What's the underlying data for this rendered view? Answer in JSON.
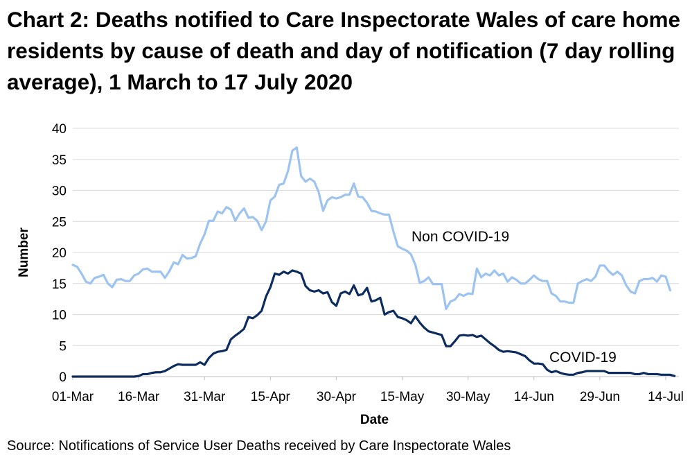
{
  "title": "Chart 2: Deaths notified to Care Inspectorate Wales of care home residents by cause of death and day of notification (7 day rolling average), 1 March to 17 July 2020",
  "source": "Source: Notifications of Service User Deaths received by Care Inspectorate Wales",
  "colors": {
    "non_covid": "#9DC3F0",
    "covid": "#0C2B5E",
    "grid": "#D9D9D9",
    "axis": "#BFBFBF"
  },
  "chart_data": {
    "type": "line",
    "title": "Chart 2: Deaths notified to Care Inspectorate Wales of care home residents by cause of death and day of notification (7 day rolling average), 1 March to 17 July 2020",
    "xlabel": "Date",
    "ylabel": "Number",
    "ylim": [
      0,
      40
    ],
    "yticks": [
      "0",
      "5",
      "10",
      "15",
      "20",
      "25",
      "30",
      "35",
      "40"
    ],
    "xticks": [
      "01-Mar",
      "16-Mar",
      "31-Mar",
      "15-Apr",
      "30-Apr",
      "15-May",
      "30-May",
      "14-Jun",
      "29-Jun",
      "14-Jul"
    ],
    "grid": true,
    "legend": "none",
    "x_start": "2020-03-01",
    "x_end": "2020-07-17",
    "series": [
      {
        "name": "Non COVID-19",
        "color": "#9DC3F0",
        "label": "Non COVID-19",
        "values": [
          18.0,
          17.7,
          16.6,
          15.3,
          15.0,
          15.9,
          16.1,
          16.4,
          15.0,
          14.4,
          15.6,
          15.7,
          15.4,
          15.4,
          16.3,
          16.6,
          17.3,
          17.4,
          16.9,
          16.9,
          16.9,
          15.9,
          17.0,
          18.4,
          18.1,
          19.6,
          19.0,
          19.1,
          19.4,
          21.4,
          22.9,
          25.1,
          25.1,
          26.6,
          26.3,
          27.3,
          26.9,
          25.1,
          26.3,
          27.1,
          25.6,
          25.7,
          25.1,
          23.6,
          25.0,
          28.4,
          29.0,
          30.9,
          31.1,
          33.1,
          36.4,
          36.9,
          32.3,
          31.4,
          31.9,
          31.4,
          29.7,
          26.7,
          28.4,
          28.9,
          28.7,
          28.9,
          29.3,
          29.3,
          31.1,
          29.0,
          28.9,
          28.0,
          26.7,
          26.6,
          26.3,
          26.1,
          26.1,
          23.4,
          21.0,
          20.6,
          20.3,
          19.7,
          18.0,
          15.1,
          15.4,
          16.0,
          14.9,
          14.9,
          14.9,
          10.9,
          12.1,
          12.4,
          13.3,
          13.0,
          13.4,
          13.3,
          17.4,
          16.0,
          16.6,
          16.3,
          17.1,
          16.3,
          16.6,
          15.3,
          16.0,
          15.6,
          15.0,
          15.0,
          15.6,
          16.3,
          15.7,
          15.4,
          15.4,
          13.4,
          13.0,
          12.1,
          12.1,
          11.9,
          11.9,
          15.0,
          15.4,
          15.7,
          15.4,
          16.1,
          17.9,
          17.9,
          17.0,
          16.4,
          16.9,
          16.3,
          14.7,
          13.7,
          13.4,
          15.4,
          15.7,
          15.7,
          15.9,
          15.3,
          16.3,
          16.1,
          13.9
        ]
      },
      {
        "name": "COVID-19",
        "color": "#0C2B5E",
        "label": "COVID-19",
        "values": [
          0,
          0,
          0,
          0,
          0,
          0,
          0,
          0,
          0,
          0,
          0,
          0,
          0,
          0,
          0,
          0.1,
          0.4,
          0.4,
          0.6,
          0.7,
          0.7,
          0.9,
          1.3,
          1.7,
          2.0,
          1.9,
          1.9,
          1.9,
          1.9,
          2.3,
          1.9,
          3.0,
          3.7,
          4.0,
          4.1,
          4.3,
          6.0,
          6.6,
          7.1,
          7.7,
          9.6,
          9.4,
          9.9,
          10.6,
          12.9,
          14.4,
          16.6,
          16.4,
          16.9,
          16.6,
          17.1,
          16.9,
          16.6,
          14.6,
          13.9,
          13.7,
          13.9,
          13.4,
          13.6,
          12.0,
          11.4,
          13.4,
          13.7,
          13.3,
          14.7,
          13.1,
          13.3,
          14.3,
          12.1,
          12.3,
          12.7,
          10.0,
          10.4,
          10.6,
          9.6,
          9.4,
          9.1,
          8.6,
          9.7,
          8.7,
          7.9,
          7.3,
          7.1,
          6.9,
          6.7,
          4.9,
          4.9,
          5.7,
          6.6,
          6.7,
          6.6,
          6.7,
          6.4,
          6.6,
          6.0,
          5.4,
          4.9,
          4.3,
          4.0,
          4.1,
          4.0,
          3.9,
          3.6,
          3.3,
          2.6,
          2.1,
          2.1,
          2.0,
          1.1,
          0.7,
          0.9,
          0.6,
          0.4,
          0.3,
          0.3,
          0.6,
          0.7,
          0.9,
          0.9,
          0.9,
          0.9,
          0.9,
          0.6,
          0.6,
          0.6,
          0.6,
          0.6,
          0.6,
          0.4,
          0.4,
          0.6,
          0.4,
          0.4,
          0.4,
          0.3,
          0.3,
          0.3,
          0.1
        ]
      }
    ]
  }
}
